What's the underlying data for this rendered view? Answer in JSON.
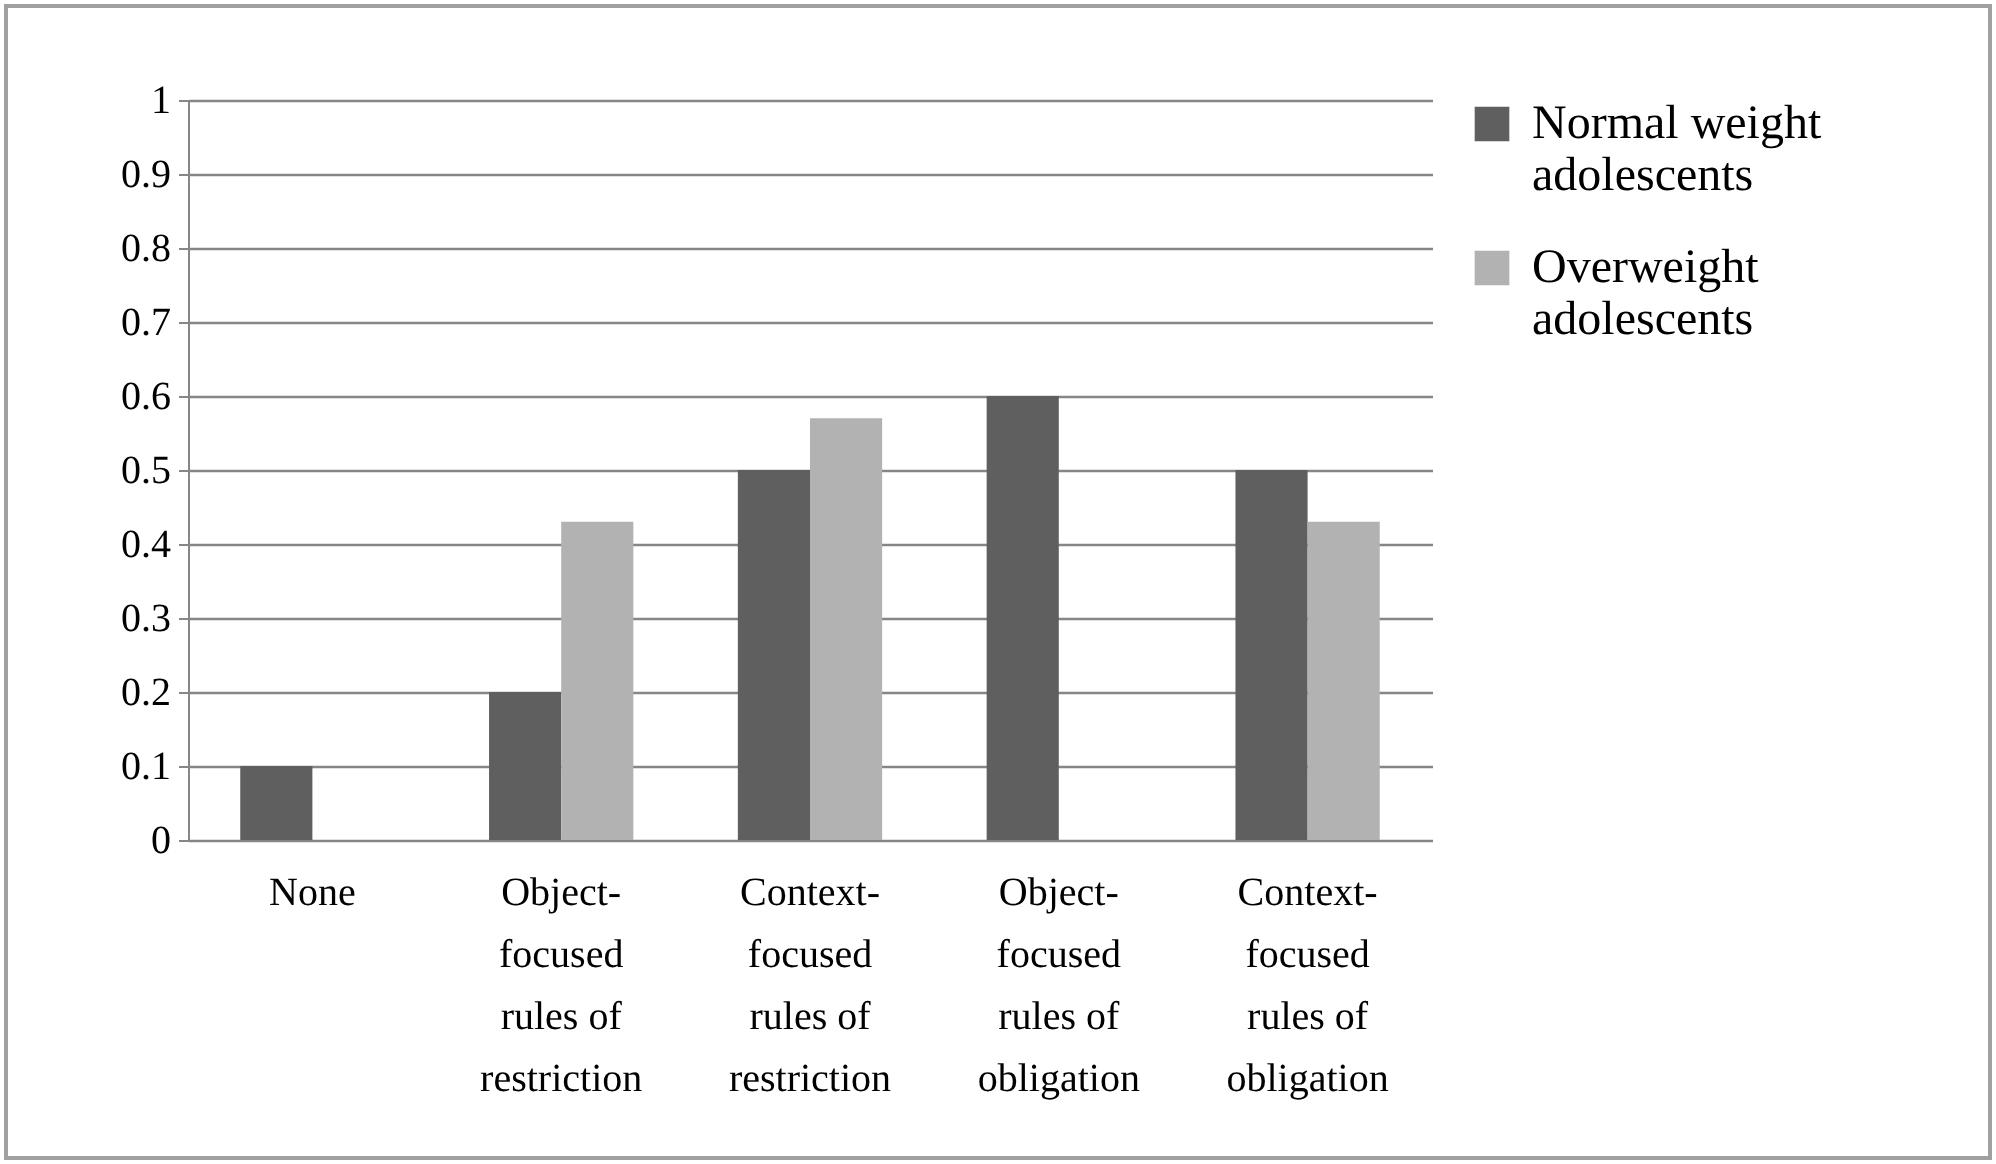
{
  "chart_data": {
    "type": "bar",
    "categories": [
      "None",
      "Object-focused rules of restriction",
      "Context-focused rules of restriction",
      "Object-focused rules of obligation",
      "Context-focused rules of obligation"
    ],
    "series": [
      {
        "name": "Normal weight adolescents",
        "color": "#5f5f5f",
        "values": [
          0.1,
          0.2,
          0.5,
          0.6,
          0.5
        ]
      },
      {
        "name": "Overweight adolescents",
        "color": "#b2b2b2",
        "values": [
          0,
          0.43,
          0.57,
          0,
          0.43
        ]
      }
    ],
    "ylim": [
      0,
      1
    ],
    "yticks": [
      0,
      0.1,
      0.2,
      0.3,
      0.4,
      0.5,
      0.6,
      0.7,
      0.8,
      0.9,
      1
    ],
    "grid": "y",
    "legend": "right"
  }
}
